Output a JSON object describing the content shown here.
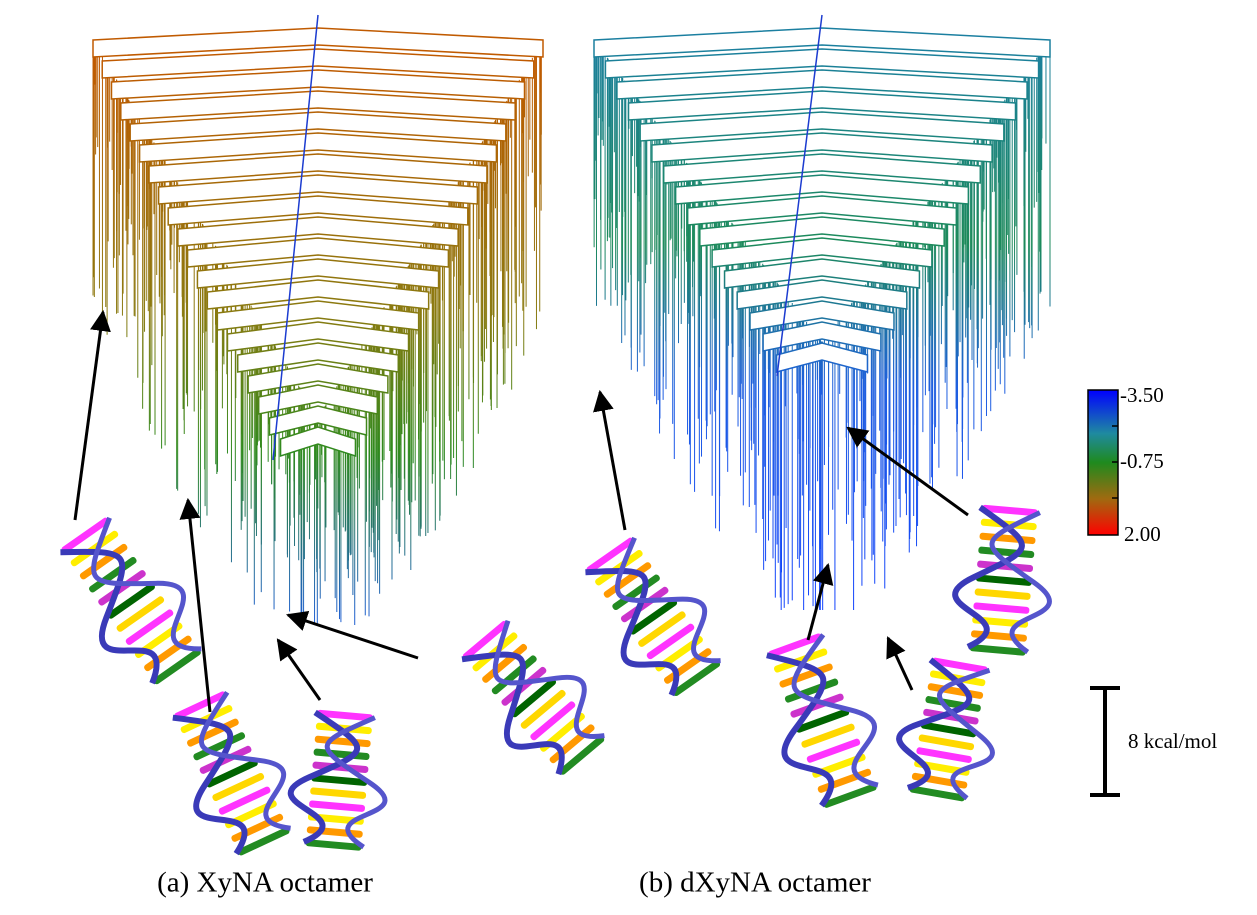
{
  "panels": [
    {
      "caption": "(a) XyNA octamer"
    },
    {
      "caption": "(b) dXyNA octamer"
    }
  ],
  "colorbar": {
    "labels": [
      "-3.50",
      "-0.75",
      "2.00"
    ]
  },
  "scale_bar": {
    "label": "8 kcal/mol"
  }
}
